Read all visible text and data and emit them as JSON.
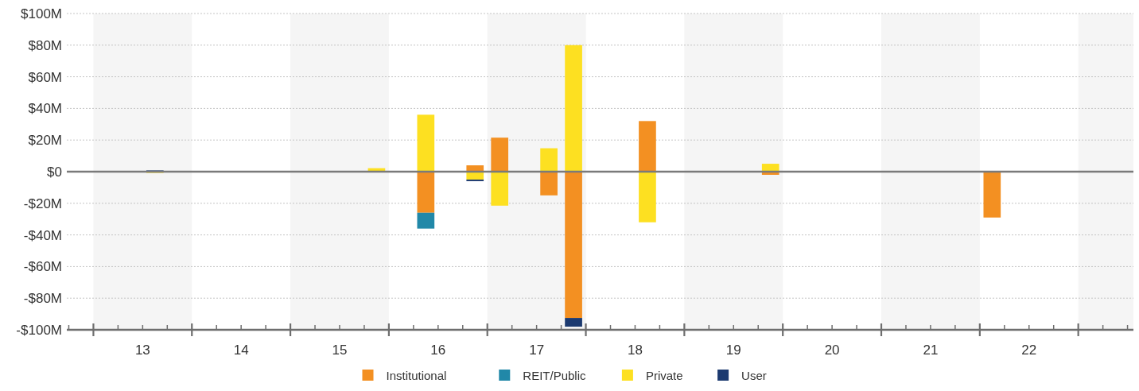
{
  "chart_data": {
    "type": "bar",
    "stacked": true,
    "x": [
      13.125,
      15.375,
      15.875,
      16.375,
      16.625,
      17.125,
      17.375,
      18.125,
      19.375,
      21.625
    ],
    "series": [
      {
        "name": "Institutional",
        "color": "#f39022",
        "values": [
          null,
          null,
          -26,
          4,
          21.5,
          -15,
          -92.5,
          32,
          -2,
          -29
        ]
      },
      {
        "name": "REIT/Public",
        "color": "#2188a8",
        "values": [
          null,
          null,
          -10,
          null,
          null,
          null,
          null,
          null,
          null,
          null
        ]
      },
      {
        "name": "Private",
        "color": "#fde021",
        "values": [
          -0.8,
          2.2,
          36,
          -5,
          -21.5,
          14.8,
          80,
          -32,
          5,
          null
        ]
      },
      {
        "name": "User",
        "color": "#1c3a70",
        "values": [
          0.8,
          -0.5,
          null,
          -1,
          null,
          null,
          -5.5,
          null,
          null,
          null
        ]
      }
    ],
    "ylim": [
      -100,
      100
    ],
    "yticks": [
      {
        "value": 100,
        "label": "$100M"
      },
      {
        "value": 80,
        "label": "$80M"
      },
      {
        "value": 60,
        "label": "$60M"
      },
      {
        "value": 40,
        "label": "$40M"
      },
      {
        "value": 20,
        "label": "$20M"
      },
      {
        "value": 0,
        "label": "$0"
      },
      {
        "value": -20,
        "label": "-$20M"
      },
      {
        "value": -40,
        "label": "-$40M"
      },
      {
        "value": -60,
        "label": "-$60M"
      },
      {
        "value": -80,
        "label": "-$80M"
      },
      {
        "value": -100,
        "label": "-$100M"
      }
    ],
    "xlim": [
      12.23,
      23.06
    ],
    "xticks": [
      {
        "value": 12.25,
        "label": null
      },
      {
        "value": 12.5,
        "label": null
      },
      {
        "value": 12.75,
        "label": null
      },
      13,
      {
        "value": 13.25,
        "label": null
      },
      {
        "value": 13.5,
        "label": null
      },
      {
        "value": 13.75,
        "label": null
      },
      14,
      {
        "value": 14.25,
        "label": null
      },
      {
        "value": 14.5,
        "label": null
      },
      {
        "value": 14.75,
        "label": null
      },
      15,
      {
        "value": 15.25,
        "label": null
      },
      {
        "value": 15.5,
        "label": null
      },
      {
        "value": 15.75,
        "label": null
      },
      16,
      {
        "value": 16.25,
        "label": null
      },
      {
        "value": 16.5,
        "label": null
      },
      {
        "value": 16.75,
        "label": null
      },
      17,
      {
        "value": 17.25,
        "label": null
      },
      {
        "value": 17.5,
        "label": null
      },
      {
        "value": 17.75,
        "label": null
      },
      18,
      {
        "value": 18.25,
        "label": null
      },
      {
        "value": 18.5,
        "label": null
      },
      {
        "value": 18.75,
        "label": null
      },
      19,
      {
        "value": 19.25,
        "label": null
      },
      {
        "value": 19.5,
        "label": null
      },
      {
        "value": 19.75,
        "label": null
      },
      20,
      {
        "value": 20.25,
        "label": null
      },
      {
        "value": 20.5,
        "label": null
      },
      {
        "value": 20.75,
        "label": null
      },
      21,
      {
        "value": 21.25,
        "label": null
      },
      {
        "value": 21.5,
        "label": null
      },
      {
        "value": 21.75,
        "label": null
      },
      22,
      {
        "value": 22.25,
        "label": null
      },
      {
        "value": 22.5,
        "label": null
      },
      {
        "value": 22.75,
        "label": null
      },
      {
        "value": 23,
        "label": null
      }
    ],
    "bands": [
      {
        "axis": "x",
        "from": 12.5,
        "to": 13.5,
        "color": "#f5f5f5"
      },
      {
        "axis": "x",
        "from": 14.5,
        "to": 15.5,
        "color": "#f5f5f5"
      },
      {
        "axis": "x",
        "from": 16.5,
        "to": 17.5,
        "color": "#f5f5f5"
      },
      {
        "axis": "x",
        "from": 18.5,
        "to": 19.5,
        "color": "#f5f5f5"
      },
      {
        "axis": "x",
        "from": 20.5,
        "to": 21.5,
        "color": "#f5f5f5"
      },
      {
        "axis": "x",
        "from": 22.5,
        "to": 23.06,
        "color": "#f5f5f5"
      }
    ],
    "grid": "y",
    "legend": "bottom"
  }
}
